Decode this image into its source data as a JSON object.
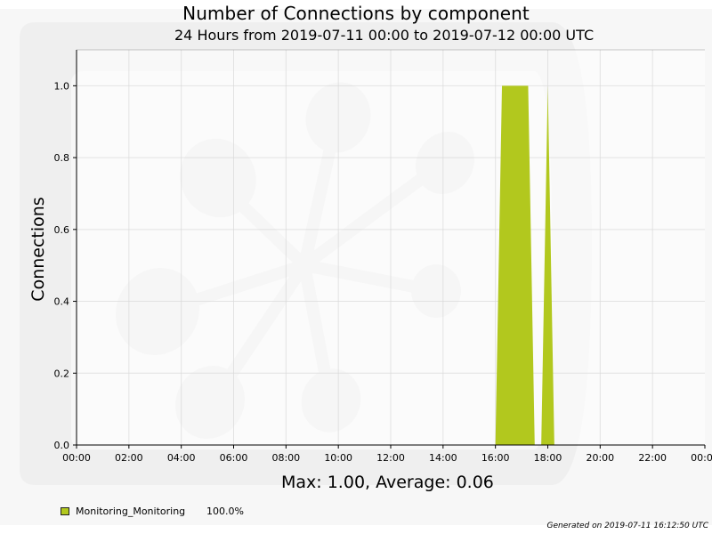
{
  "chart_data": {
    "type": "area",
    "title": "Number of Connections by component",
    "subtitle": "24 Hours from 2019-07-11 00:00 to 2019-07-12 00:00 UTC",
    "xlabel": "",
    "ylabel": "Connections",
    "x_ticks": [
      "00:00",
      "02:00",
      "04:00",
      "06:00",
      "08:00",
      "10:00",
      "12:00",
      "14:00",
      "16:00",
      "18:00",
      "20:00",
      "22:00",
      "00:00"
    ],
    "y_ticks": [
      "0.0",
      "0.2",
      "0.4",
      "0.6",
      "0.8",
      "1.0"
    ],
    "xlim_hours": [
      0,
      24
    ],
    "ylim": [
      0,
      1.1
    ],
    "grid": true,
    "series": [
      {
        "name": "Monitoring_Monitoring",
        "color": "#b2c81e",
        "points": [
          [
            0,
            0
          ],
          [
            16.0,
            0
          ],
          [
            16.25,
            1.0
          ],
          [
            17.25,
            1.0
          ],
          [
            17.5,
            0
          ],
          [
            17.75,
            0
          ],
          [
            18.0,
            1.0
          ],
          [
            18.25,
            0
          ],
          [
            24,
            0
          ]
        ]
      }
    ]
  },
  "stats": "Max: 1.00, Average: 0.06",
  "legend": {
    "name": "Monitoring_Monitoring",
    "percent": "100.0%"
  },
  "footer": "Generated on 2019-07-11 16:12:50 UTC"
}
